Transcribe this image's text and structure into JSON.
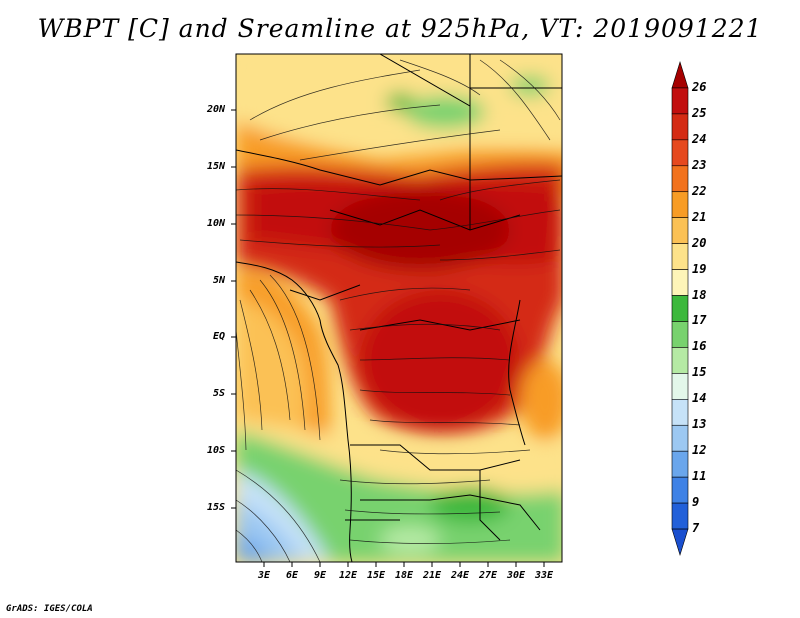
{
  "title": "WBPT [C] and Sreamline at 925hPa, VT: 2019091221",
  "credit": "GrADS: IGES/COLA",
  "lat_labels": [
    "20N",
    "15N",
    "10N",
    "5N",
    "EQ",
    "5S",
    "10S",
    "15S"
  ],
  "lon_labels": [
    "3E",
    "6E",
    "9E",
    "12E",
    "15E",
    "18E",
    "21E",
    "24E",
    "27E",
    "30E",
    "33E"
  ],
  "colorbar": {
    "labels": [
      "26",
      "25",
      "24",
      "23",
      "22",
      "21",
      "20",
      "19",
      "18",
      "17",
      "16",
      "15",
      "14",
      "13",
      "12",
      "11",
      "9",
      "7"
    ],
    "colors": [
      "#a50000",
      "#c20f0f",
      "#d42b14",
      "#e6491e",
      "#f2721d",
      "#f89c25",
      "#fbc155",
      "#fde28a",
      "#fef5b8",
      "#3cb83c",
      "#78d26e",
      "#b5eaa4",
      "#e3f7ea",
      "#c6e2f8",
      "#9cc8f2",
      "#6aa6ec",
      "#3f82e6",
      "#2260d9",
      "#1a4fcf"
    ]
  },
  "field": {
    "variable": "WBPT",
    "units": "C",
    "level": "925hPa",
    "valid_time": "2019091221"
  }
}
